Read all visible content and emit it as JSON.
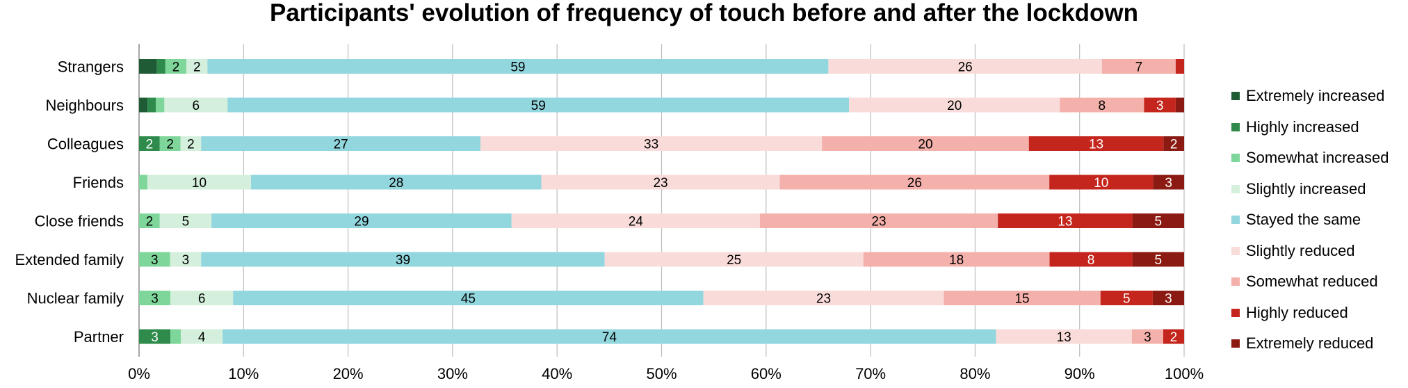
{
  "colors": {
    "Extremely increased": "#1f5c36",
    "Highly increased": "#2e8b4c",
    "Somewhat increased": "#7ed69a",
    "Slightly increased": "#d4efdc",
    "Stayed the same": "#92d6de",
    "Slightly reduced": "#f9dcd9",
    "Somewhat reduced": "#f4b0aa",
    "Highly reduced": "#c4251c",
    "Extremely reduced": "#8b1a12"
  },
  "chart_data": {
    "type": "bar",
    "orientation": "horizontal",
    "stacked": "percent",
    "title": "Participants' evolution of frequency of touch before and after the lockdown",
    "xlabel": "",
    "ylabel": "",
    "xlim": [
      0,
      100
    ],
    "x_ticks": [
      "0%",
      "10%",
      "20%",
      "30%",
      "40%",
      "50%",
      "60%",
      "70%",
      "80%",
      "90%",
      "100%"
    ],
    "grid": "vertical",
    "legend_position": "right",
    "categories": [
      "Strangers",
      "Neighbours",
      "Colleagues",
      "Friends",
      "Close friends",
      "Extended family",
      "Nuclear family",
      "Partner"
    ],
    "series": [
      {
        "name": "Extremely increased",
        "values": [
          1.7,
          0.8,
          0,
          0,
          0,
          0,
          0,
          0
        ]
      },
      {
        "name": "Highly increased",
        "values": [
          0.8,
          0.8,
          2,
          0,
          0,
          0,
          0,
          3
        ]
      },
      {
        "name": "Somewhat increased",
        "values": [
          2,
          0.8,
          2,
          0.8,
          2,
          3,
          3,
          1
        ]
      },
      {
        "name": "Slightly increased",
        "values": [
          2,
          6,
          2,
          10,
          5,
          3,
          6,
          4
        ]
      },
      {
        "name": "Stayed the same",
        "values": [
          59,
          59,
          27,
          28,
          29,
          39,
          45,
          74
        ]
      },
      {
        "name": "Slightly reduced",
        "values": [
          26,
          20,
          33,
          23,
          24,
          25,
          23,
          13
        ]
      },
      {
        "name": "Somewhat reduced",
        "values": [
          7,
          8,
          20,
          26,
          23,
          18,
          15,
          3
        ]
      },
      {
        "name": "Highly reduced",
        "values": [
          0.8,
          3,
          13,
          10,
          13,
          8,
          5,
          2
        ]
      },
      {
        "name": "Extremely reduced",
        "values": [
          0,
          0.8,
          2,
          3,
          5,
          5,
          3,
          0
        ]
      }
    ],
    "data_labels": [
      [
        null,
        null,
        "2",
        "2",
        "59",
        "26",
        "7",
        null,
        null
      ],
      [
        null,
        null,
        null,
        "6",
        "59",
        "20",
        "8",
        "3",
        null
      ],
      [
        null,
        "2",
        "2",
        "2",
        "27",
        "33",
        "20",
        "13",
        "2"
      ],
      [
        null,
        null,
        null,
        "10",
        "28",
        "23",
        "26",
        "10",
        "3"
      ],
      [
        null,
        null,
        "2",
        "5",
        "29",
        "24",
        "23",
        "13",
        "5"
      ],
      [
        null,
        null,
        "3",
        "3",
        "39",
        "25",
        "18",
        "8",
        "5"
      ],
      [
        null,
        null,
        "3",
        "6",
        "45",
        "23",
        "15",
        "5",
        "3"
      ],
      [
        null,
        "3",
        null,
        "4",
        "74",
        "13",
        "3",
        "2",
        null
      ]
    ]
  }
}
